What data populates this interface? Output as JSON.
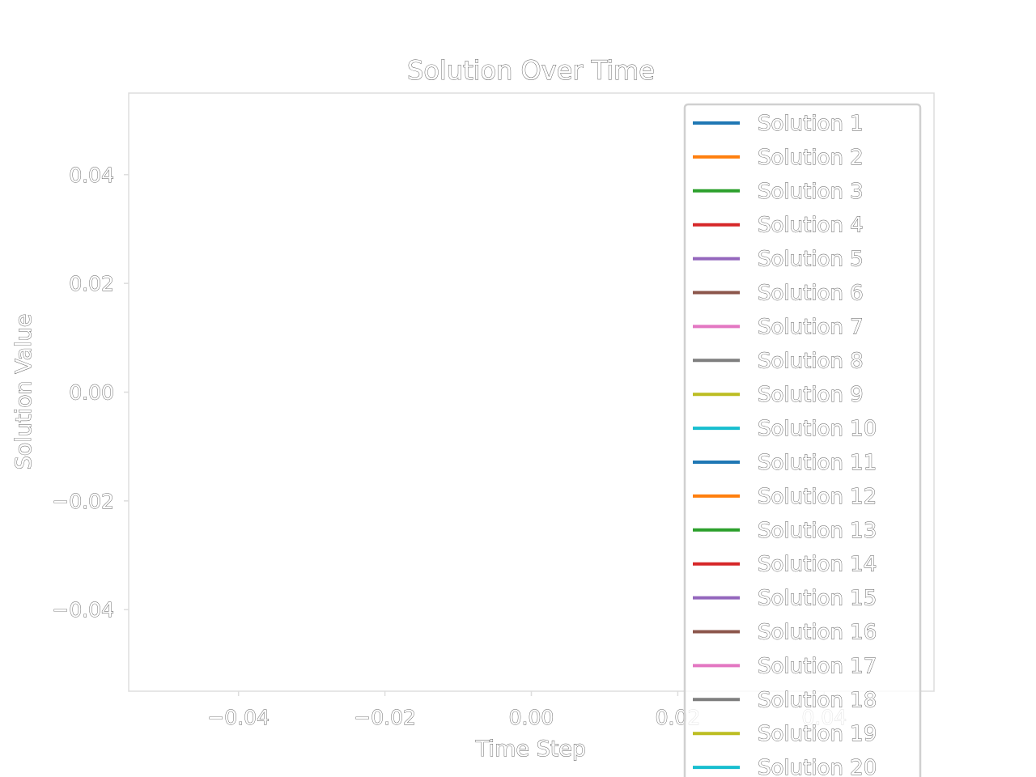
{
  "chart_data": {
    "type": "line",
    "title": "Solution Over Time",
    "xlabel": "Time Step",
    "ylabel": "Solution Value",
    "xlim": [
      -0.055,
      0.055
    ],
    "ylim": [
      -0.055,
      0.055
    ],
    "x_ticks": [
      -0.04,
      -0.02,
      0.0,
      0.02,
      0.04
    ],
    "x_tick_labels": [
      "−0.04",
      "−0.02",
      "0.00",
      "0.02",
      "0.04"
    ],
    "y_ticks": [
      0.04,
      0.02,
      0.0,
      -0.02,
      -0.04
    ],
    "y_tick_labels": [
      "0.04",
      "0.02",
      "0.00",
      "−0.02",
      "−0.04"
    ],
    "grid": false,
    "legend_position": "upper-right",
    "series": [
      {
        "name": "Solution 1",
        "color": "#1f77b4",
        "x": [],
        "y": []
      },
      {
        "name": "Solution 2",
        "color": "#ff7f0e",
        "x": [],
        "y": []
      },
      {
        "name": "Solution 3",
        "color": "#2ca02c",
        "x": [],
        "y": []
      },
      {
        "name": "Solution 4",
        "color": "#d62728",
        "x": [],
        "y": []
      },
      {
        "name": "Solution 5",
        "color": "#9467bd",
        "x": [],
        "y": []
      },
      {
        "name": "Solution 6",
        "color": "#8c564b",
        "x": [],
        "y": []
      },
      {
        "name": "Solution 7",
        "color": "#e377c2",
        "x": [],
        "y": []
      },
      {
        "name": "Solution 8",
        "color": "#7f7f7f",
        "x": [],
        "y": []
      },
      {
        "name": "Solution 9",
        "color": "#bcbd22",
        "x": [],
        "y": []
      },
      {
        "name": "Solution 10",
        "color": "#17becf",
        "x": [],
        "y": []
      },
      {
        "name": "Solution 11",
        "color": "#1f77b4",
        "x": [],
        "y": []
      },
      {
        "name": "Solution 12",
        "color": "#ff7f0e",
        "x": [],
        "y": []
      },
      {
        "name": "Solution 13",
        "color": "#2ca02c",
        "x": [],
        "y": []
      },
      {
        "name": "Solution 14",
        "color": "#d62728",
        "x": [],
        "y": []
      },
      {
        "name": "Solution 15",
        "color": "#9467bd",
        "x": [],
        "y": []
      },
      {
        "name": "Solution 16",
        "color": "#8c564b",
        "x": [],
        "y": []
      },
      {
        "name": "Solution 17",
        "color": "#e377c2",
        "x": [],
        "y": []
      },
      {
        "name": "Solution 18",
        "color": "#7f7f7f",
        "x": [],
        "y": []
      },
      {
        "name": "Solution 19",
        "color": "#bcbd22",
        "x": [],
        "y": []
      },
      {
        "name": "Solution 20",
        "color": "#17becf",
        "x": [],
        "y": []
      }
    ]
  }
}
